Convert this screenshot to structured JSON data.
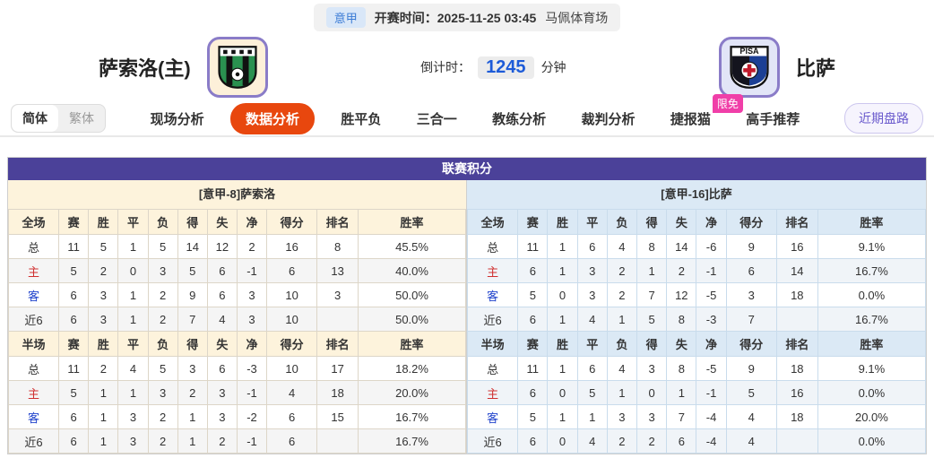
{
  "top_bar": {
    "league_badge": "意甲",
    "kickoff": "开赛时间：2025-11-25 03:45",
    "venue": "马佩体育场"
  },
  "match": {
    "home_name": "萨索洛(主)",
    "away_name": "比萨",
    "away_crest_text": "PISA",
    "countdown_label": "倒计时：",
    "countdown_value": "1245",
    "countdown_unit": "分钟"
  },
  "nav": {
    "lang_simplified": "简体",
    "lang_traditional": "繁体",
    "tabs": [
      {
        "label": "现场分析"
      },
      {
        "label": "数据分析",
        "active": true
      },
      {
        "label": "胜平负"
      },
      {
        "label": "三合一"
      },
      {
        "label": "教练分析"
      },
      {
        "label": "裁判分析"
      },
      {
        "label": "捷报猫",
        "badge": "限免"
      },
      {
        "label": "高手推荐"
      }
    ],
    "recent_button": "近期盘路"
  },
  "table": {
    "title": "联赛积分",
    "home": {
      "subtitle": "[意甲-8]萨索洛",
      "sections": [
        {
          "header": [
            "全场",
            "赛",
            "胜",
            "平",
            "负",
            "得",
            "失",
            "净",
            "得分",
            "排名",
            "胜率"
          ],
          "rows": [
            {
              "label": "总",
              "type": "total",
              "cells": [
                "11",
                "5",
                "1",
                "5",
                "14",
                "12",
                "2",
                "16",
                "8",
                "45.5%"
              ]
            },
            {
              "label": "主",
              "type": "home",
              "cells": [
                "5",
                "2",
                "0",
                "3",
                "5",
                "6",
                "-1",
                "6",
                "13",
                "40.0%"
              ]
            },
            {
              "label": "客",
              "type": "away",
              "cells": [
                "6",
                "3",
                "1",
                "2",
                "9",
                "6",
                "3",
                "10",
                "3",
                "50.0%"
              ]
            },
            {
              "label": "近6",
              "type": "recent",
              "cells": [
                "6",
                "3",
                "1",
                "2",
                "7",
                "4",
                "3",
                "10",
                "",
                "50.0%"
              ]
            }
          ]
        },
        {
          "header": [
            "半场",
            "赛",
            "胜",
            "平",
            "负",
            "得",
            "失",
            "净",
            "得分",
            "排名",
            "胜率"
          ],
          "rows": [
            {
              "label": "总",
              "type": "total",
              "cells": [
                "11",
                "2",
                "4",
                "5",
                "3",
                "6",
                "-3",
                "10",
                "17",
                "18.2%"
              ]
            },
            {
              "label": "主",
              "type": "home",
              "cells": [
                "5",
                "1",
                "1",
                "3",
                "2",
                "3",
                "-1",
                "4",
                "18",
                "20.0%"
              ]
            },
            {
              "label": "客",
              "type": "away",
              "cells": [
                "6",
                "1",
                "3",
                "2",
                "1",
                "3",
                "-2",
                "6",
                "15",
                "16.7%"
              ]
            },
            {
              "label": "近6",
              "type": "recent",
              "cells": [
                "6",
                "1",
                "3",
                "2",
                "1",
                "2",
                "-1",
                "6",
                "",
                "16.7%"
              ]
            }
          ]
        }
      ]
    },
    "away": {
      "subtitle": "[意甲-16]比萨",
      "sections": [
        {
          "header": [
            "全场",
            "赛",
            "胜",
            "平",
            "负",
            "得",
            "失",
            "净",
            "得分",
            "排名",
            "胜率"
          ],
          "rows": [
            {
              "label": "总",
              "type": "total",
              "cells": [
                "11",
                "1",
                "6",
                "4",
                "8",
                "14",
                "-6",
                "9",
                "16",
                "9.1%"
              ]
            },
            {
              "label": "主",
              "type": "home",
              "cells": [
                "6",
                "1",
                "3",
                "2",
                "1",
                "2",
                "-1",
                "6",
                "14",
                "16.7%"
              ]
            },
            {
              "label": "客",
              "type": "away",
              "cells": [
                "5",
                "0",
                "3",
                "2",
                "7",
                "12",
                "-5",
                "3",
                "18",
                "0.0%"
              ]
            },
            {
              "label": "近6",
              "type": "recent",
              "cells": [
                "6",
                "1",
                "4",
                "1",
                "5",
                "8",
                "-3",
                "7",
                "",
                "16.7%"
              ]
            }
          ]
        },
        {
          "header": [
            "半场",
            "赛",
            "胜",
            "平",
            "负",
            "得",
            "失",
            "净",
            "得分",
            "排名",
            "胜率"
          ],
          "rows": [
            {
              "label": "总",
              "type": "total",
              "cells": [
                "11",
                "1",
                "6",
                "4",
                "3",
                "8",
                "-5",
                "9",
                "18",
                "9.1%"
              ]
            },
            {
              "label": "主",
              "type": "home",
              "cells": [
                "6",
                "0",
                "5",
                "1",
                "0",
                "1",
                "-1",
                "5",
                "16",
                "0.0%"
              ]
            },
            {
              "label": "客",
              "type": "away",
              "cells": [
                "5",
                "1",
                "1",
                "3",
                "3",
                "7",
                "-4",
                "4",
                "18",
                "20.0%"
              ]
            },
            {
              "label": "近6",
              "type": "recent",
              "cells": [
                "6",
                "0",
                "4",
                "2",
                "2",
                "6",
                "-4",
                "4",
                "",
                "0.0%"
              ]
            }
          ]
        }
      ]
    }
  },
  "colors": {
    "accent_tab": "#e8470e",
    "panel_header": "#4b4199",
    "home_theme": "#fdf3dc",
    "away_theme": "#dbe9f5",
    "label_home_red": "#d03030",
    "label_away_blue": "#2244cc",
    "badge_pink": "#f03fa8",
    "countdown_blue": "#1d5bd8",
    "league_badge_blue": "#3a7bd5"
  }
}
